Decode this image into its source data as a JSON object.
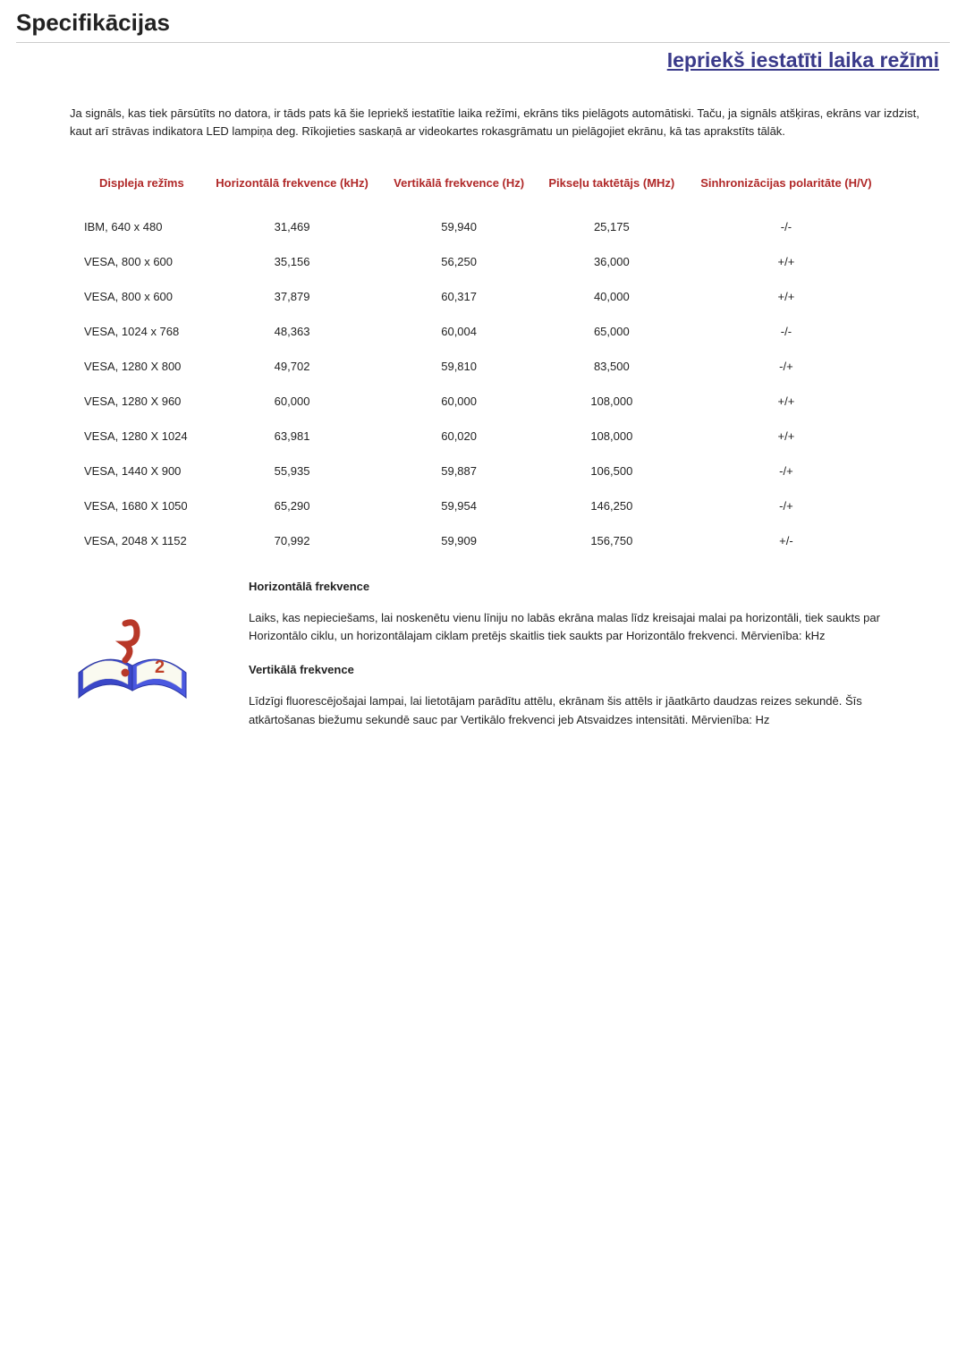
{
  "header": {
    "title": "Specifikācijas",
    "section": "Iepriekš iestatīti laika režīmi"
  },
  "intro": "Ja signāls, kas tiek pārsūtīts no datora, ir tāds pats kā šie Iepriekš iestatītie laika režīmi, ekrāns tiks pielāgots automātiski. Taču, ja signāls atšķiras, ekrāns var izdzist, kaut arī strāvas indikatora LED lampiņa deg. Rīkojieties saskaņā ar videokartes rokasgrāmatu un pielāgojiet ekrānu, kā tas aprakstīts tālāk.",
  "table": {
    "headers": {
      "mode": "Displeja režīms",
      "h_freq": "Horizontālā frekvence (kHz)",
      "v_freq": "Vertikālā frekvence (Hz)",
      "pixel": "Pikseļu taktētājs (MHz)",
      "sync": "Sinhronizācijas polaritāte (H/V)"
    },
    "rows": [
      {
        "mode": "IBM, 640 x 480",
        "hf": "31,469",
        "vf": "59,940",
        "px": "25,175",
        "sp": "-/-"
      },
      {
        "mode": "VESA, 800 x 600",
        "hf": "35,156",
        "vf": "56,250",
        "px": "36,000",
        "sp": "+/+"
      },
      {
        "mode": "VESA, 800 x 600",
        "hf": "37,879",
        "vf": "60,317",
        "px": "40,000",
        "sp": "+/+"
      },
      {
        "mode": "VESA, 1024 x 768",
        "hf": "48,363",
        "vf": "60,004",
        "px": "65,000",
        "sp": "-/-"
      },
      {
        "mode": "VESA, 1280 X 800",
        "hf": "49,702",
        "vf": "59,810",
        "px": "83,500",
        "sp": "-/+"
      },
      {
        "mode": "VESA, 1280 X 960",
        "hf": "60,000",
        "vf": "60,000",
        "px": "108,000",
        "sp": "+/+"
      },
      {
        "mode": "VESA, 1280 X 1024",
        "hf": "63,981",
        "vf": "60,020",
        "px": "108,000",
        "sp": "+/+"
      },
      {
        "mode": "VESA, 1440 X 900",
        "hf": "55,935",
        "vf": "59,887",
        "px": "106,500",
        "sp": "-/+"
      },
      {
        "mode": "VESA, 1680 X 1050",
        "hf": "65,290",
        "vf": "59,954",
        "px": "146,250",
        "sp": "-/+"
      },
      {
        "mode": "VESA, 2048 X 1152",
        "hf": "70,992",
        "vf": "59,909",
        "px": "156,750",
        "sp": "+/-"
      }
    ]
  },
  "info": {
    "hf_title": "Horizontālā frekvence",
    "hf_text": "Laiks, kas nepieciešams, lai noskenētu vienu līniju no labās ekrāna malas līdz kreisajai malai pa horizontāli, tiek saukts par Horizontālo ciklu, un horizontālajam ciklam pretējs skaitlis tiek saukts par Horizontālo frekvenci. Mērvienība: kHz",
    "vf_title": "Vertikālā frekvence",
    "vf_text": "Līdzīgi fluorescējošajai lampai, lai lietotājam parādītu attēlu, ekrānam šis attēls ir jāatkārto daudzas reizes sekundē. Šīs atkārtošanas biežumu sekundē sauc par Vertikālo frekvenci jeb Atsvaidzes intensitāti. Mērvienība: Hz"
  },
  "style": {
    "heading_color": "#b02828",
    "section_color": "#3a3a8a",
    "body_font_size": 13
  }
}
